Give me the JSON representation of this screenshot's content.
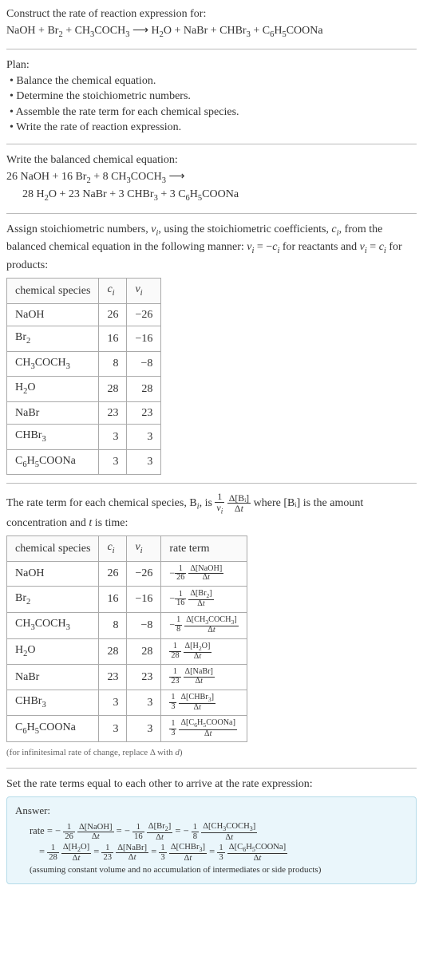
{
  "prompt": {
    "title": "Construct the rate of reaction expression for:",
    "equation_lhs": "NaOH + Br",
    "equation": "NaOH + Br₂ + CH₃COCH₃ ⟶ H₂O + NaBr + CHBr₃ + C₆H₅COONa"
  },
  "plan": {
    "heading": "Plan:",
    "items": [
      "Balance the chemical equation.",
      "Determine the stoichiometric numbers.",
      "Assemble the rate term for each chemical species.",
      "Write the rate of reaction expression."
    ]
  },
  "balanced": {
    "heading": "Write the balanced chemical equation:",
    "line1": "26 NaOH + 16 Br₂ + 8 CH₃COCH₃ ⟶",
    "line2": "28 H₂O + 23 NaBr + 3 CHBr₃ + 3 C₆H₅COONa"
  },
  "assign": {
    "text_a": "Assign stoichiometric numbers, ",
    "nu_i": "νᵢ",
    "text_b": ", using the stoichiometric coefficients, ",
    "c_i": "cᵢ",
    "text_c": ", from the balanced chemical equation in the following manner: ",
    "rel1": "νᵢ = −cᵢ",
    "text_d": " for reactants and ",
    "rel2": "νᵢ = cᵢ",
    "text_e": " for products:"
  },
  "table1": {
    "headers": [
      "chemical species",
      "cᵢ",
      "νᵢ"
    ],
    "rows": [
      [
        "NaOH",
        "26",
        "−26"
      ],
      [
        "Br₂",
        "16",
        "−16"
      ],
      [
        "CH₃COCH₃",
        "8",
        "−8"
      ],
      [
        "H₂O",
        "28",
        "28"
      ],
      [
        "NaBr",
        "23",
        "23"
      ],
      [
        "CHBr₃",
        "3",
        "3"
      ],
      [
        "C₆H₅COONa",
        "3",
        "3"
      ]
    ]
  },
  "rateterm": {
    "text_a": "The rate term for each chemical species, B",
    "text_b": ", is ",
    "frac1_num": "1",
    "frac1_den": "νᵢ",
    "frac2_num": "Δ[Bᵢ]",
    "frac2_den": "Δt",
    "text_c": " where [Bᵢ] is the amount concentration and ",
    "t": "t",
    "text_d": " is time:"
  },
  "table2": {
    "headers": [
      "chemical species",
      "cᵢ",
      "νᵢ",
      "rate term"
    ],
    "rows": [
      {
        "sp": "NaOH",
        "c": "26",
        "n": "−26",
        "sign": "−",
        "coef": "26",
        "conc": "Δ[NaOH]"
      },
      {
        "sp": "Br₂",
        "c": "16",
        "n": "−16",
        "sign": "−",
        "coef": "16",
        "conc": "Δ[Br₂]"
      },
      {
        "sp": "CH₃COCH₃",
        "c": "8",
        "n": "−8",
        "sign": "−",
        "coef": "8",
        "conc": "Δ[CH₃COCH₃]"
      },
      {
        "sp": "H₂O",
        "c": "28",
        "n": "28",
        "sign": "",
        "coef": "28",
        "conc": "Δ[H₂O]"
      },
      {
        "sp": "NaBr",
        "c": "23",
        "n": "23",
        "sign": "",
        "coef": "23",
        "conc": "Δ[NaBr]"
      },
      {
        "sp": "CHBr₃",
        "c": "3",
        "n": "3",
        "sign": "",
        "coef": "3",
        "conc": "Δ[CHBr₃]"
      },
      {
        "sp": "C₆H₅COONa",
        "c": "3",
        "n": "3",
        "sign": "",
        "coef": "3",
        "conc": "Δ[C₆H₅COONa]"
      }
    ],
    "dt": "Δt"
  },
  "note_infinitesimal": "(for infinitesimal rate of change, replace Δ with d)",
  "setequal": "Set the rate terms equal to each other to arrive at the rate expression:",
  "answer": {
    "label": "Answer:",
    "prefix": "rate = ",
    "terms": [
      {
        "sign": "−",
        "coef": "26",
        "conc": "Δ[NaOH]"
      },
      {
        "sign": "−",
        "coef": "16",
        "conc": "Δ[Br₂]"
      },
      {
        "sign": "−",
        "coef": "8",
        "conc": "Δ[CH₃COCH₃]"
      },
      {
        "sign": "",
        "coef": "28",
        "conc": "Δ[H₂O]"
      },
      {
        "sign": "",
        "coef": "23",
        "conc": "Δ[NaBr]"
      },
      {
        "sign": "",
        "coef": "3",
        "conc": "Δ[CHBr₃]"
      },
      {
        "sign": "",
        "coef": "3",
        "conc": "Δ[C₆H₅COONa]"
      }
    ],
    "dt": "Δt",
    "note": "(assuming constant volume and no accumulation of intermediates or side products)"
  },
  "colors": {
    "answer_bg": "#eaf6fb",
    "answer_border": "#b5dce9",
    "rule": "#bbbbbb",
    "cell_border": "#aaaaaa"
  }
}
